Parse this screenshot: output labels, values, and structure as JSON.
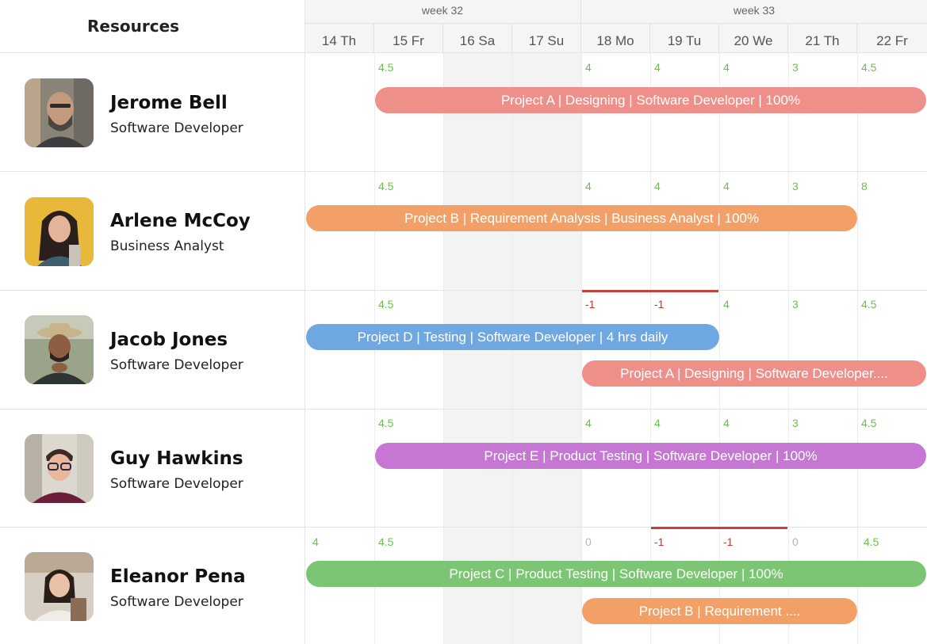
{
  "header": {
    "resources_label": "Resources",
    "weeks": [
      {
        "label": "week 32"
      },
      {
        "label": "week 33"
      }
    ],
    "days": [
      {
        "label": "14  Th"
      },
      {
        "label": "15  Fr"
      },
      {
        "label": "16  Sa"
      },
      {
        "label": "17  Su"
      },
      {
        "label": "18  Mo"
      },
      {
        "label": "19  Tu"
      },
      {
        "label": "20  We"
      },
      {
        "label": "21  Th"
      },
      {
        "label": "22  Fr"
      }
    ]
  },
  "colors": {
    "pink": "#ef8f8a",
    "orange": "#f2a067",
    "blue": "#6fa8e0",
    "purple": "#c677d3",
    "green": "#7cc574",
    "hours_positive": "#6cbf4e",
    "hours_negative": "#c0392b"
  },
  "resources": [
    {
      "name": "Jerome Bell",
      "role": "Software Developer",
      "hours": [
        "",
        "4.5",
        "",
        "",
        "4",
        "4",
        "4",
        "3",
        "4.5"
      ],
      "bars": [
        {
          "label": "Project A | Designing | Software Developer | 100%",
          "color": "pink"
        }
      ]
    },
    {
      "name": "Arlene McCoy",
      "role": "Business Analyst",
      "hours": [
        "",
        "4.5",
        "",
        "",
        "4",
        "4",
        "4",
        "3",
        "8"
      ],
      "bars": [
        {
          "label": "Project B | Requirement Analysis | Business Analyst | 100%",
          "color": "orange"
        }
      ]
    },
    {
      "name": "Jacob Jones",
      "role": "Software Developer",
      "hours": [
        "",
        "4.5",
        "",
        "",
        "-1",
        "-1",
        "4",
        "3",
        "4.5"
      ],
      "bars": [
        {
          "label": "Project D | Testing | Software Developer | 4 hrs daily",
          "color": "blue"
        },
        {
          "label": "Project A | Designing | Software Developer....",
          "color": "pink"
        }
      ]
    },
    {
      "name": "Guy Hawkins",
      "role": "Software Developer",
      "hours": [
        "",
        "4.5",
        "",
        "",
        "4",
        "4",
        "4",
        "3",
        "4.5"
      ],
      "bars": [
        {
          "label": "Project E | Product Testing | Software Developer | 100%",
          "color": "purple"
        }
      ]
    },
    {
      "name": "Eleanor Pena",
      "role": "Software Developer",
      "hours": [
        "4",
        "4.5",
        "",
        "",
        "0",
        "-1",
        "-1",
        "0",
        "4.5"
      ],
      "bars": [
        {
          "label": "Project C | Product Testing | Software Developer | 100%",
          "color": "green"
        },
        {
          "label": "Project B | Requirement ....",
          "color": "orange"
        }
      ]
    }
  ]
}
